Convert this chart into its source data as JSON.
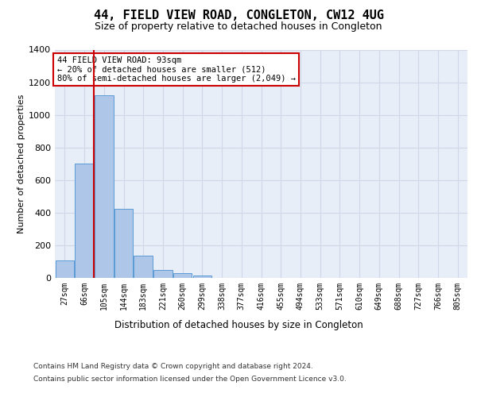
{
  "title": "44, FIELD VIEW ROAD, CONGLETON, CW12 4UG",
  "subtitle": "Size of property relative to detached houses in Congleton",
  "xlabel": "Distribution of detached houses by size in Congleton",
  "ylabel": "Number of detached properties",
  "bar_labels": [
    "27sqm",
    "66sqm",
    "105sqm",
    "144sqm",
    "183sqm",
    "221sqm",
    "260sqm",
    "299sqm",
    "338sqm",
    "377sqm",
    "416sqm",
    "455sqm",
    "494sqm",
    "533sqm",
    "571sqm",
    "610sqm",
    "649sqm",
    "688sqm",
    "727sqm",
    "766sqm",
    "805sqm"
  ],
  "bar_values": [
    105,
    700,
    1120,
    425,
    135,
    50,
    30,
    15,
    0,
    0,
    0,
    0,
    0,
    0,
    0,
    0,
    0,
    0,
    0,
    0,
    0
  ],
  "bar_color": "#aec6e8",
  "bar_edge_color": "#5b9bd5",
  "grid_color": "#d0d8e8",
  "background_color": "#e8eef8",
  "vline_color": "#cc0000",
  "vline_pos": 1.5,
  "annotation_text": "44 FIELD VIEW ROAD: 93sqm\n← 20% of detached houses are smaller (512)\n80% of semi-detached houses are larger (2,049) →",
  "annotation_box_color": "#ffffff",
  "annotation_box_edge": "#cc0000",
  "ylim": [
    0,
    1400
  ],
  "yticks": [
    0,
    200,
    400,
    600,
    800,
    1000,
    1200,
    1400
  ],
  "footer_line1": "Contains HM Land Registry data © Crown copyright and database right 2024.",
  "footer_line2": "Contains public sector information licensed under the Open Government Licence v3.0."
}
